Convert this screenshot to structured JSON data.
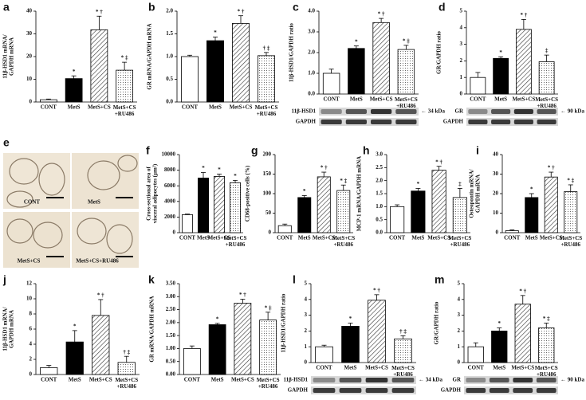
{
  "chart_data": [
    {
      "type": "bar",
      "label": "a",
      "ylabel": [
        "11β-HSD1 mRNA/",
        "GAPDH mRNA"
      ],
      "categories": [
        "CONT",
        "MetS",
        "MetS+CS",
        "MetS+CS+RU486"
      ],
      "values": [
        1,
        10.3,
        31.8,
        14
      ],
      "errors": [
        0.3,
        1.2,
        6,
        3.5
      ],
      "annotations": [
        null,
        "*",
        "* †",
        "* ‡"
      ],
      "ylim": [
        0,
        40
      ],
      "yticks": [
        0,
        10,
        20,
        30,
        40
      ]
    },
    {
      "type": "bar",
      "label": "b",
      "ylabel": [
        "GR mRNA/GAPDH mRNA"
      ],
      "categories": [
        "CONT",
        "MetS",
        "MetS+CS",
        "MetS+CS+RU486"
      ],
      "values": [
        1.0,
        1.35,
        1.73,
        1.02
      ],
      "errors": [
        0.03,
        0.08,
        0.17,
        0.07
      ],
      "annotations": [
        null,
        "*",
        "* †",
        "† ‡"
      ],
      "ylim": [
        0,
        2
      ],
      "yticks": [
        {
          "value": 0,
          "label": "0.0"
        },
        0.5,
        {
          "value": 1,
          "label": "1.0"
        },
        1.5,
        {
          "value": 2,
          "label": "2.0"
        }
      ]
    },
    {
      "type": "bar",
      "label": "c",
      "ylabel": [
        "11β-HSD1/GAPDH ratio"
      ],
      "categories": [
        "CONT",
        "MetS",
        "MetS+CS",
        "MetS+CS+RU486"
      ],
      "values": [
        1.0,
        2.2,
        3.45,
        2.15
      ],
      "errors": [
        0.2,
        0.12,
        0.2,
        0.2
      ],
      "annotations": [
        null,
        "*",
        "* †",
        "* ‡"
      ],
      "ylim": [
        0,
        4
      ],
      "yticks": [
        {
          "value": 0,
          "label": "0.0"
        },
        {
          "value": 1,
          "label": "1.0"
        },
        {
          "value": 2,
          "label": "2.0"
        },
        {
          "value": 3,
          "label": "3.0"
        },
        {
          "value": 4,
          "label": "4.0"
        }
      ],
      "blot": {
        "bands": [
          "11β-HSD1",
          "GAPDH"
        ],
        "marker": "← 34 kDa"
      }
    },
    {
      "type": "bar",
      "label": "d",
      "ylabel": [
        "GR/GAPDH ratio"
      ],
      "categories": [
        "CONT",
        "MetS",
        "MetS+CS",
        "MetS+CS+RU486"
      ],
      "values": [
        1.0,
        2.15,
        3.9,
        1.95
      ],
      "errors": [
        0.3,
        0.1,
        0.6,
        0.4
      ],
      "annotations": [
        null,
        "*",
        "* †",
        "‡"
      ],
      "ylim": [
        0,
        5
      ],
      "yticks": [
        0,
        1,
        2,
        3,
        4,
        5
      ],
      "blot": {
        "bands": [
          "GR",
          "GAPDH"
        ],
        "marker": "← 90 kDa"
      }
    },
    {
      "type": "bar",
      "label": "f",
      "ylabel": [
        "Cross-sectional area of",
        "visceral adipocytes (μm²)"
      ],
      "categories": [
        "CONT",
        "MetS",
        "MetS+CS",
        "MetS+CS+RU486"
      ],
      "values": [
        2300,
        7000,
        7200,
        6400
      ],
      "errors": [
        80,
        700,
        300,
        300
      ],
      "annotations": [
        null,
        "*",
        "*",
        "*"
      ],
      "ylim": [
        0,
        10000
      ],
      "yticks": [
        0,
        2000,
        4000,
        6000,
        8000,
        10000
      ]
    },
    {
      "type": "bar",
      "label": "g",
      "ylabel": [
        "CD68-positive cells (%)"
      ],
      "categories": [
        "CONT",
        "MetS",
        "MetS+CS",
        "MetS+CS+RU486"
      ],
      "values": [
        18,
        90,
        143,
        108
      ],
      "errors": [
        4,
        5,
        12,
        14
      ],
      "annotations": [
        null,
        "*",
        "* †",
        "* ‡"
      ],
      "ylim": [
        0,
        200
      ],
      "yticks": [
        0,
        50,
        100,
        150,
        200
      ]
    },
    {
      "type": "bar",
      "label": "h",
      "ylabel": [
        "MCP-1 mRNA/GAPDH mRNA"
      ],
      "categories": [
        "CONT",
        "MetS",
        "MetS+CS",
        "MetS+CS+RU486"
      ],
      "values": [
        1.0,
        1.6,
        2.4,
        1.35
      ],
      "errors": [
        0.07,
        0.1,
        0.15,
        0.35
      ],
      "annotations": [
        null,
        "*",
        "* †",
        "‡"
      ],
      "ylim": [
        0,
        3
      ],
      "yticks": [
        {
          "value": 0,
          "label": "0.0"
        },
        0.5,
        {
          "value": 1,
          "label": "1.0"
        },
        1.5,
        {
          "value": 2,
          "label": "2.0"
        },
        2.5,
        {
          "value": 3,
          "label": "3.0"
        }
      ]
    },
    {
      "type": "bar",
      "label": "i",
      "ylabel": [
        "Osteopontin mRNA/",
        "GAPDH mRNA"
      ],
      "categories": [
        "CONT",
        "MetS",
        "MetS+CS",
        "MetS+CS+RU486"
      ],
      "values": [
        1,
        18,
        28.5,
        21
      ],
      "errors": [
        0.4,
        2,
        2.5,
        3.5
      ],
      "annotations": [
        null,
        "*",
        "* †",
        "* ‡"
      ],
      "ylim": [
        0,
        40
      ],
      "yticks": [
        0,
        10,
        20,
        30,
        40
      ]
    },
    {
      "type": "bar",
      "label": "j",
      "ylabel": [
        "11β-HSD1 mRNA/",
        "GAPDH mRNA"
      ],
      "categories": [
        "CONT",
        "MetS",
        "MetS+CS",
        "MetS+CS+RU486"
      ],
      "values": [
        0.9,
        4.3,
        7.8,
        1.6
      ],
      "errors": [
        0.3,
        1.5,
        2.1,
        0.8
      ],
      "annotations": [
        null,
        "*",
        "* †",
        "† ‡"
      ],
      "ylim": [
        0,
        12
      ],
      "yticks": [
        0,
        2,
        4,
        6,
        8,
        10,
        12
      ]
    },
    {
      "type": "bar",
      "label": "k",
      "ylabel": [
        "GR mRNA/GAPDH mRNA"
      ],
      "categories": [
        "CONT",
        "MetS",
        "MetS+CS",
        "MetS+CS+RU486"
      ],
      "values": [
        1.0,
        1.92,
        2.75,
        2.1
      ],
      "errors": [
        0.1,
        0.05,
        0.15,
        0.3
      ],
      "annotations": [
        null,
        "*",
        "* †",
        "* ‡"
      ],
      "ylim": [
        0,
        3.5
      ],
      "yticks": [
        {
          "value": 0,
          "label": "0.00"
        },
        {
          "value": 0.5,
          "label": "0.50"
        },
        {
          "value": 1,
          "label": "1.00"
        },
        {
          "value": 1.5,
          "label": "1.50"
        },
        {
          "value": 2,
          "label": "2.00"
        },
        {
          "value": 2.5,
          "label": "2.50"
        },
        {
          "value": 3,
          "label": "3.00"
        },
        {
          "value": 3.5,
          "label": "3.50"
        }
      ]
    },
    {
      "type": "bar",
      "label": "l",
      "ylabel": [
        "11β-HSD1/GAPDH ratio"
      ],
      "categories": [
        "CONT",
        "MetS",
        "MetS+CS",
        "MetS+CS+RU486"
      ],
      "values": [
        1.0,
        2.3,
        3.95,
        1.5
      ],
      "errors": [
        0.1,
        0.2,
        0.35,
        0.2
      ],
      "annotations": [
        null,
        "*",
        "* †",
        "† ‡"
      ],
      "ylim": [
        0,
        5
      ],
      "yticks": [
        0,
        1,
        2,
        3,
        4,
        5
      ],
      "blot": {
        "bands": [
          "11β-HSD1",
          "GAPDH"
        ],
        "marker": "← 34 kDa"
      }
    },
    {
      "type": "bar",
      "label": "m",
      "ylabel": [
        "GR/GAPDH ratio"
      ],
      "categories": [
        "CONT",
        "MetS",
        "MetS+CS",
        "MetS+CS+RU486"
      ],
      "values": [
        1.0,
        2.0,
        3.7,
        2.2
      ],
      "errors": [
        0.25,
        0.2,
        0.55,
        0.3
      ],
      "annotations": [
        null,
        "*",
        "* †",
        "* ‡"
      ],
      "ylim": [
        0,
        5
      ],
      "yticks": [
        0,
        1,
        2,
        3,
        4,
        5
      ],
      "blot": {
        "bands": [
          "GR",
          "GAPDH"
        ],
        "marker": "← 90 kDa"
      }
    }
  ],
  "micrograph": {
    "label": "e",
    "captions": [
      "CONT",
      "MetS",
      "MetS+CS",
      "MetS+CS+RU486"
    ]
  }
}
